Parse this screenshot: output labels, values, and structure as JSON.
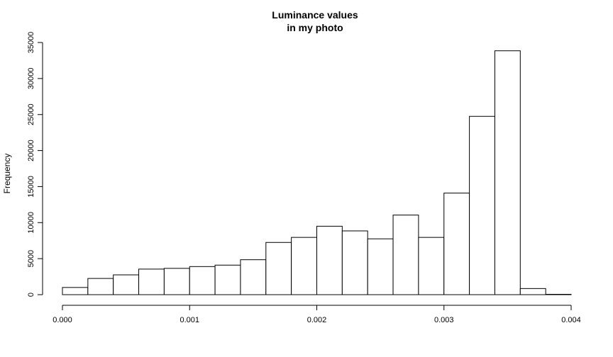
{
  "chart_data": {
    "type": "bar",
    "title_lines": [
      "Luminance values",
      "in my photo"
    ],
    "xlabel": "",
    "ylabel": "Frequency",
    "xlim": [
      0,
      0.004
    ],
    "ylim": [
      0,
      35000
    ],
    "x_ticks": [
      0,
      0.001,
      0.002,
      0.003,
      0.004
    ],
    "x_tick_labels": [
      "0.000",
      "0.001",
      "0.002",
      "0.003",
      "0.004"
    ],
    "y_ticks": [
      0,
      5000,
      10000,
      15000,
      20000,
      25000,
      30000,
      35000
    ],
    "y_tick_labels": [
      "0",
      "5000",
      "10000",
      "15000",
      "20000",
      "25000",
      "30000",
      "35000"
    ],
    "bin_edges": [
      0,
      0.0002,
      0.0004,
      0.0006,
      0.0008,
      0.001,
      0.0012,
      0.0014,
      0.0016,
      0.0018,
      0.002,
      0.0022,
      0.0024,
      0.0026,
      0.0028,
      0.003,
      0.0032,
      0.0034,
      0.0036,
      0.0038,
      0.004
    ],
    "values": [
      1000,
      2250,
      2750,
      3550,
      3650,
      3900,
      4100,
      4850,
      7250,
      7950,
      9500,
      8850,
      7750,
      11050,
      7950,
      14100,
      24750,
      33850,
      850,
      50
    ],
    "grid": false,
    "legend": "none"
  }
}
